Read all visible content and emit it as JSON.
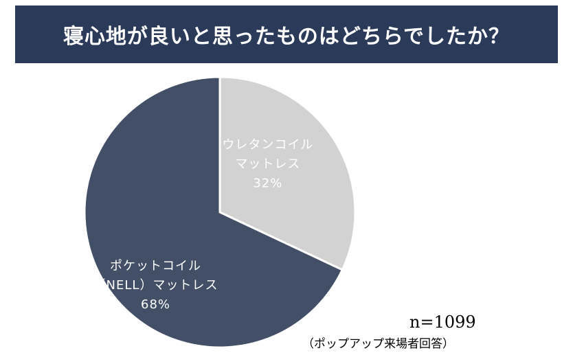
{
  "header": {
    "title": "寝心地が良いと思ったものはどちらでしたか？"
  },
  "chart_data": {
    "type": "pie",
    "title": "寝心地が良いと思ったものはどちらでしたか？",
    "slices": [
      {
        "label_lines": [
          "ウレタンコイル",
          "マットレス"
        ],
        "value": 32,
        "value_label": "32%",
        "color": "#d3d2d3",
        "label_color": "#ffffff"
      },
      {
        "label_lines": [
          "ポケットコイル",
          "（NELL）マットレス"
        ],
        "value": 68,
        "value_label": "68%",
        "color": "#424f66",
        "label_color": "#ffffff"
      }
    ],
    "start": "12 o'clock, clockwise",
    "legend": "none",
    "sample_size": "n=1099",
    "note": "（ポップアップ来場者回答）"
  },
  "colors": {
    "header_bg": "#2b3a58",
    "header_text": "#ffffff",
    "background": "#ffffff"
  }
}
